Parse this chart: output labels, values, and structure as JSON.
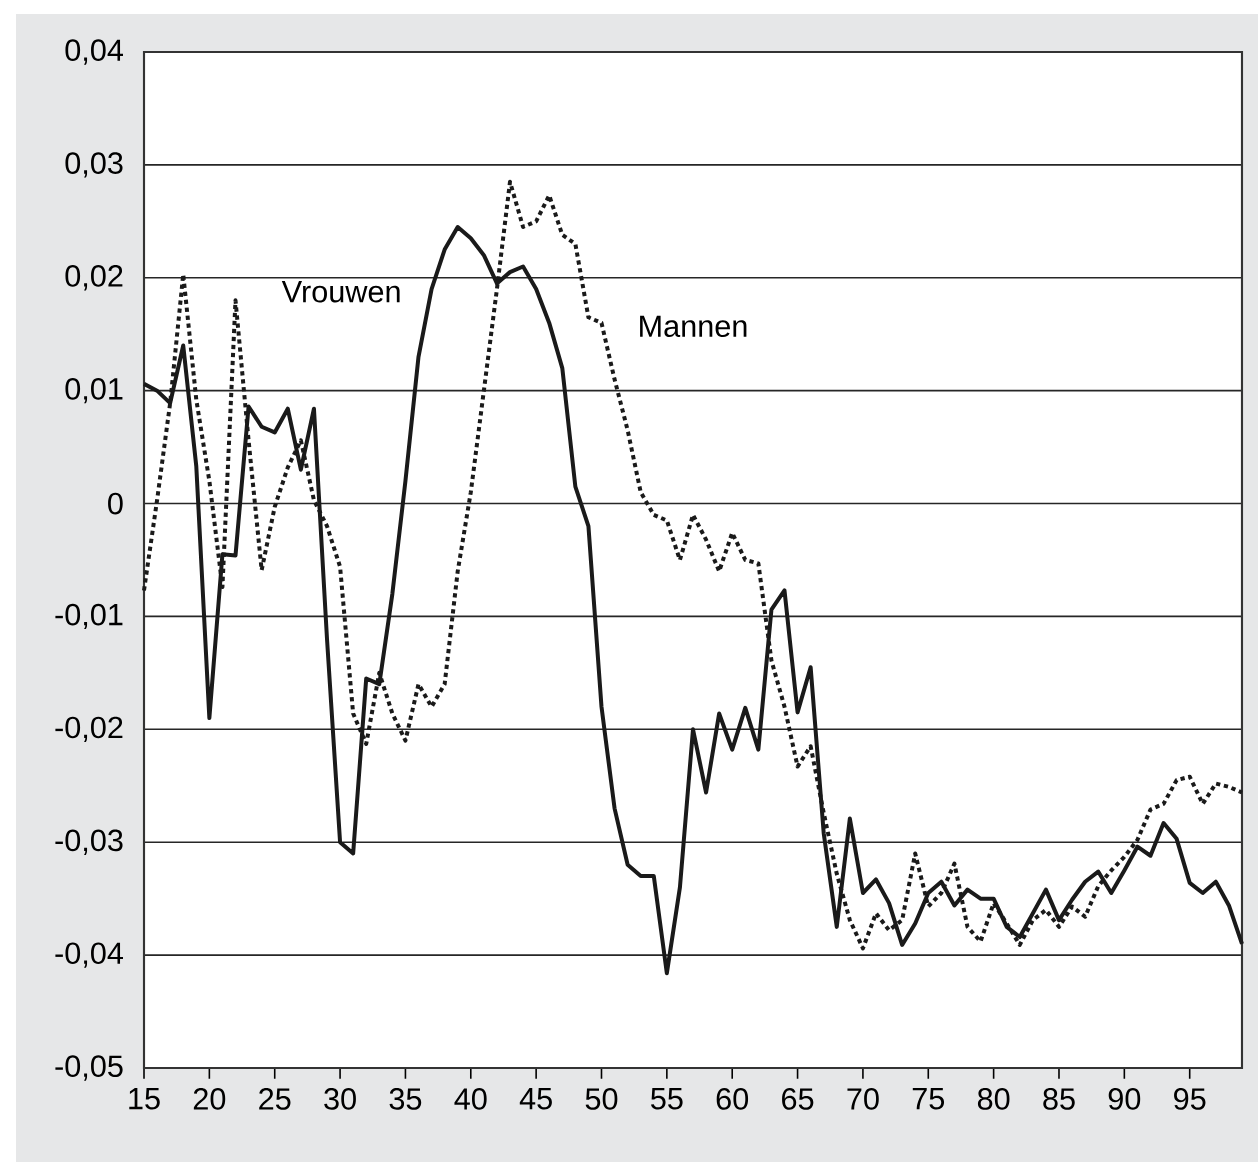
{
  "chart_data": {
    "type": "line",
    "x": [
      15,
      16,
      17,
      18,
      19,
      20,
      21,
      22,
      23,
      24,
      25,
      26,
      27,
      28,
      29,
      30,
      31,
      32,
      33,
      34,
      35,
      36,
      37,
      38,
      39,
      40,
      41,
      42,
      43,
      44,
      45,
      46,
      47,
      48,
      49,
      50,
      51,
      52,
      53,
      54,
      55,
      56,
      57,
      58,
      59,
      60,
      61,
      62,
      63,
      64,
      65,
      66,
      67,
      68,
      69,
      70,
      71,
      72,
      73,
      74,
      75,
      76,
      77,
      78,
      79,
      80,
      81,
      82,
      83,
      84,
      85,
      86,
      87,
      88,
      89,
      90,
      91,
      92,
      93,
      94,
      95,
      96,
      97,
      98,
      99
    ],
    "series": [
      {
        "name": "Vrouwen",
        "color": "#1a1a1a",
        "line_style": "solid",
        "values": [
          0.0106,
          0.01,
          0.0089,
          0.014,
          0.0033,
          -0.019,
          -0.0045,
          -0.0046,
          0.0086,
          0.0068,
          0.0063,
          0.0084,
          0.003,
          0.0084,
          -0.012,
          -0.03,
          -0.031,
          -0.0155,
          -0.016,
          -0.008,
          0.002,
          0.013,
          0.019,
          0.0225,
          0.0245,
          0.0235,
          0.022,
          0.0195,
          0.0205,
          0.021,
          0.019,
          0.016,
          0.012,
          0.0015,
          -0.002,
          -0.018,
          -0.027,
          -0.032,
          -0.033,
          -0.033,
          -0.0416,
          -0.034,
          -0.02,
          -0.0256,
          -0.0186,
          -0.0218,
          -0.0181,
          -0.0218,
          -0.0094,
          -0.0077,
          -0.0185,
          -0.0145,
          -0.0292,
          -0.0375,
          -0.0279,
          -0.0345,
          -0.0333,
          -0.0354,
          -0.0391,
          -0.0372,
          -0.0345,
          -0.0335,
          -0.0356,
          -0.0342,
          -0.035,
          -0.035,
          -0.0375,
          -0.0384,
          -0.0363,
          -0.0342,
          -0.0369,
          -0.0351,
          -0.0335,
          -0.0326,
          -0.0345,
          -0.0325,
          -0.0304,
          -0.0312,
          -0.0283,
          -0.0297,
          -0.0336,
          -0.0345,
          -0.0335,
          -0.0356,
          -0.039
        ]
      },
      {
        "name": "Mannen",
        "color": "#1a1a1a",
        "line_style": "dotted",
        "values": [
          -0.0077,
          0.0003,
          0.0089,
          0.0203,
          0.0092,
          0.002,
          -0.0074,
          0.018,
          0.0056,
          -0.0059,
          -0.0003,
          0.0032,
          0.0056,
          0.0003,
          -0.002,
          -0.0056,
          -0.0186,
          -0.0213,
          -0.015,
          -0.0186,
          -0.021,
          -0.016,
          -0.018,
          -0.016,
          -0.006,
          0.001,
          0.01,
          0.019,
          0.0285,
          0.0245,
          0.025,
          0.0273,
          0.0238,
          0.023,
          0.0165,
          0.016,
          0.011,
          0.0065,
          0.001,
          -0.001,
          -0.0015,
          -0.005,
          -0.001,
          -0.0032,
          -0.006,
          -0.0026,
          -0.005,
          -0.0053,
          -0.0139,
          -0.018,
          -0.0233,
          -0.0215,
          -0.0274,
          -0.0328,
          -0.0369,
          -0.0394,
          -0.0363,
          -0.0378,
          -0.0369,
          -0.031,
          -0.0357,
          -0.0345,
          -0.0319,
          -0.0375,
          -0.0388,
          -0.0354,
          -0.0372,
          -0.0391,
          -0.0369,
          -0.036,
          -0.0375,
          -0.0357,
          -0.0366,
          -0.0339,
          -0.0325,
          -0.0313,
          -0.0298,
          -0.0271,
          -0.0266,
          -0.0245,
          -0.0242,
          -0.0266,
          -0.0248,
          -0.0251,
          -0.0256
        ]
      }
    ],
    "xlim": [
      15,
      99
    ],
    "xticks": [
      15,
      20,
      25,
      30,
      35,
      40,
      45,
      50,
      55,
      60,
      65,
      70,
      75,
      80,
      85,
      90,
      95
    ],
    "ylim": [
      -0.05,
      0.04
    ],
    "yticks": [
      {
        "value": -0.05,
        "label": "-0,05"
      },
      {
        "value": -0.04,
        "label": "-0,04"
      },
      {
        "value": -0.03,
        "label": "-0,03"
      },
      {
        "value": -0.02,
        "label": "-0,02"
      },
      {
        "value": -0.01,
        "label": "-0,01"
      },
      {
        "value": 0,
        "label": "0"
      },
      {
        "value": 0.01,
        "label": "0,01"
      },
      {
        "value": 0.02,
        "label": "0,02"
      },
      {
        "value": 0.03,
        "label": "0,03"
      },
      {
        "value": 0.04,
        "label": "0,04"
      }
    ],
    "grid": "y",
    "legend": false
  }
}
